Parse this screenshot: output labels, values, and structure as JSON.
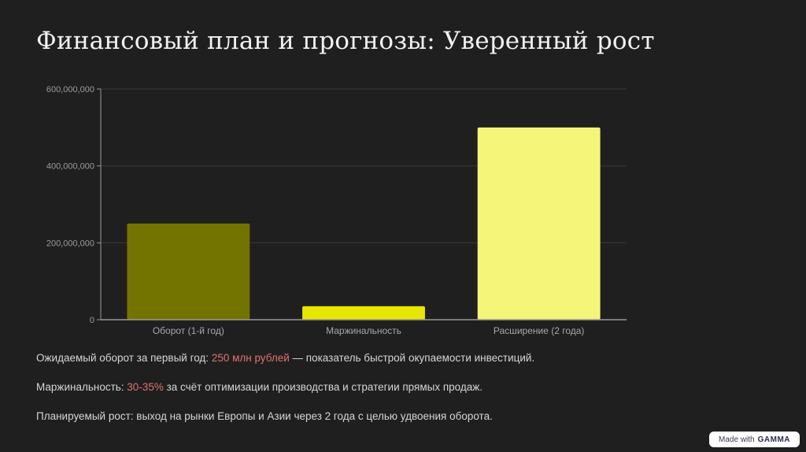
{
  "slide": {
    "title": "Финансовый план и прогнозы: Уверенный рост"
  },
  "chart_data": {
    "type": "bar",
    "categories": [
      "Оборот (1-й год)",
      "Маржинальность",
      "Расширение (2 года)"
    ],
    "values": [
      250000000,
      35000000,
      500000000
    ],
    "bar_colors": [
      "#737300",
      "#e6e600",
      "#f5f57a"
    ],
    "ylim": [
      0,
      600000000
    ],
    "yticks": [
      0,
      200000000,
      400000000,
      600000000
    ],
    "ytick_labels": [
      "0",
      "200,000,000",
      "400,000,000",
      "600,000,000"
    ],
    "grid": true,
    "title": "",
    "xlabel": "",
    "ylabel": ""
  },
  "paragraphs": [
    {
      "before": "Ожидаемый оборот за первый год: ",
      "highlight": "250 млн рублей",
      "after": " — показатель быстрой окупаемости инвестиций."
    },
    {
      "before": "Маржинальность: ",
      "highlight": "30-35%",
      "after": " за счёт оптимизации производства и стратегии прямых продаж."
    },
    {
      "before": "Планируемый рост: выход на рынки Европы и Азии через 2 года с целью удвоения оборота.",
      "highlight": "",
      "after": ""
    }
  ],
  "badge": {
    "prefix": "Made with",
    "brand": "GAMMA"
  },
  "colors": {
    "background": "#1f1f1f",
    "highlight": "#e0736f",
    "grid": "#3a3a3a",
    "axis": "#9a9a9a"
  }
}
